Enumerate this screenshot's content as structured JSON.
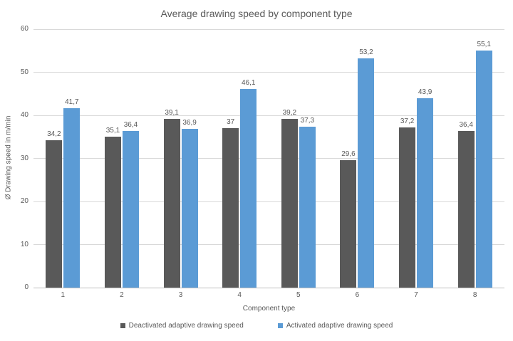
{
  "title": "Average drawing speed by component type",
  "chart_data": {
    "type": "bar",
    "title": "Average drawing speed by component type",
    "categories": [
      "1",
      "2",
      "3",
      "4",
      "5",
      "6",
      "7",
      "8"
    ],
    "series": [
      {
        "name": "Deactivated adaptive drawing speed",
        "color": "#595959",
        "values": [
          34.2,
          35.1,
          39.1,
          37,
          39.2,
          29.6,
          37.2,
          36.4
        ],
        "labels": [
          "34,2",
          "35,1",
          "39,1",
          "37",
          "39,2",
          "29,6",
          "37,2",
          "36,4"
        ]
      },
      {
        "name": "Activated adaptive drawing speed",
        "color": "#5B9BD5",
        "values": [
          41.7,
          36.4,
          36.9,
          46.1,
          37.3,
          53.2,
          43.9,
          55.1
        ],
        "labels": [
          "41,7",
          "36,4",
          "36,9",
          "46,1",
          "37,3",
          "53,2",
          "43,9",
          "55,1"
        ]
      }
    ],
    "xlabel": "Component type",
    "ylabel": "Ø Drawing speed in m/min",
    "ylim": [
      0,
      60
    ],
    "yticks": [
      "0",
      "10",
      "20",
      "30",
      "40",
      "50",
      "60"
    ],
    "grid": true,
    "legend_position": "bottom",
    "colors": {
      "gridline": "#D9D9D9",
      "axis_line": "#BFBFBF",
      "text": "#595959"
    }
  }
}
